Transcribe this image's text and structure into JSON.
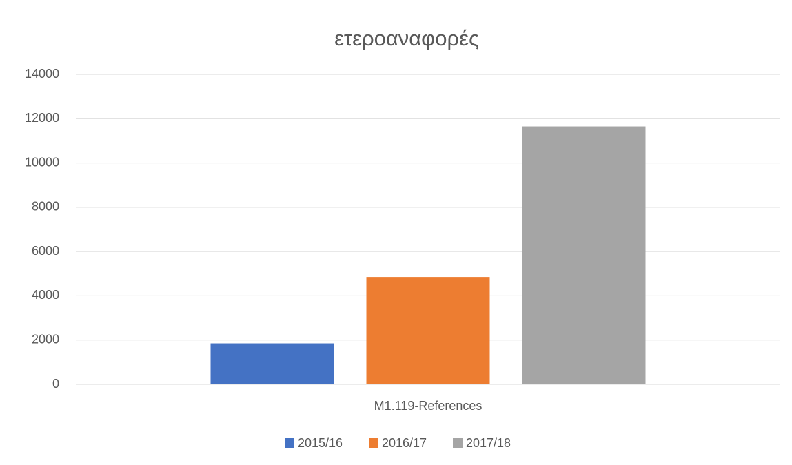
{
  "chart_data": {
    "type": "bar",
    "title": "ετεροαναφορές",
    "categories": [
      "M1.119-References"
    ],
    "series": [
      {
        "name": "2015/16",
        "color": "#4472c4",
        "values": [
          1850
        ]
      },
      {
        "name": "2016/17",
        "color": "#ed7d31",
        "values": [
          4850
        ]
      },
      {
        "name": "2017/18",
        "color": "#a5a5a5",
        "values": [
          11650
        ]
      }
    ],
    "ylim": [
      0,
      14000
    ],
    "yticks": [
      0,
      2000,
      4000,
      6000,
      8000,
      10000,
      12000,
      14000
    ],
    "grid": true,
    "legend": "bottom"
  }
}
